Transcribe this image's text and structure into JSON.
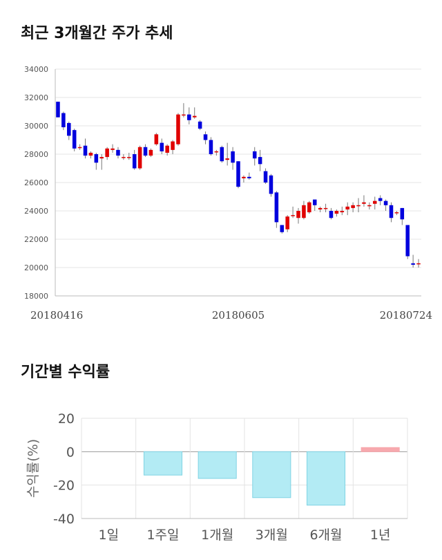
{
  "section1": {
    "title": "최근 3개월간 주가 추세"
  },
  "section2": {
    "title": "기간별 수익률"
  },
  "chart_data": [
    {
      "type": "candlestick",
      "ylim": [
        18000,
        34000
      ],
      "yticks": [
        "34000",
        "32000",
        "30000",
        "28000",
        "26000",
        "24000",
        "22000",
        "20000",
        "18000"
      ],
      "xticks": [
        "20180416",
        "20180605",
        "20180724"
      ],
      "grid": true,
      "candles": [
        [
          31700,
          30600,
          31700,
          30600
        ],
        [
          30900,
          29900,
          31000,
          29700
        ],
        [
          30200,
          29300,
          30300,
          29000
        ],
        [
          29700,
          28400,
          29800,
          28200
        ],
        [
          28500,
          28500,
          28700,
          28300
        ],
        [
          28600,
          27900,
          29100,
          27700
        ],
        [
          27900,
          28100,
          28200,
          27700
        ],
        [
          28000,
          27400,
          28100,
          26900
        ],
        [
          27700,
          27800,
          28000,
          26900
        ],
        [
          27800,
          28400,
          28500,
          27600
        ],
        [
          28300,
          28400,
          28700,
          28100
        ],
        [
          28300,
          27900,
          28500,
          27700
        ],
        [
          27800,
          27800,
          28000,
          27600
        ],
        [
          27800,
          27800,
          28100,
          27600
        ],
        [
          28000,
          27000,
          28300,
          26900
        ],
        [
          27000,
          28500,
          28600,
          26900
        ],
        [
          28500,
          27900,
          28700,
          27800
        ],
        [
          27900,
          28300,
          28400,
          27800
        ],
        [
          28700,
          29400,
          29500,
          28600
        ],
        [
          28800,
          28200,
          29100,
          28000
        ],
        [
          28100,
          28600,
          28700,
          27900
        ],
        [
          28300,
          28900,
          29000,
          28000
        ],
        [
          28700,
          30800,
          30900,
          28600
        ],
        [
          30800,
          30800,
          31600,
          30600
        ],
        [
          30800,
          30400,
          31300,
          30100
        ],
        [
          30600,
          30700,
          31300,
          30500
        ],
        [
          30300,
          29800,
          30400,
          29700
        ],
        [
          29400,
          29000,
          29600,
          28700
        ],
        [
          29000,
          28000,
          29200,
          27900
        ],
        [
          28200,
          28200,
          28300,
          27900
        ],
        [
          28500,
          27500,
          28600,
          27400
        ],
        [
          27600,
          27700,
          28800,
          27200
        ],
        [
          28200,
          27400,
          28500,
          26900
        ],
        [
          27500,
          25700,
          27500,
          25600
        ],
        [
          26300,
          26400,
          26500,
          26000
        ],
        [
          26400,
          26300,
          26700,
          26200
        ],
        [
          28200,
          27700,
          28500,
          27200
        ],
        [
          27800,
          27300,
          28300,
          26800
        ],
        [
          26800,
          26000,
          27000,
          25900
        ],
        [
          26500,
          25200,
          26600,
          25000
        ],
        [
          25300,
          23200,
          25400,
          22800
        ],
        [
          23000,
          22500,
          23000,
          22400
        ],
        [
          22700,
          23600,
          23700,
          22500
        ],
        [
          23700,
          23700,
          24300,
          23500
        ],
        [
          23500,
          24000,
          24200,
          23100
        ],
        [
          23500,
          24400,
          24700,
          23400
        ],
        [
          23900,
          24600,
          24700,
          23800
        ],
        [
          24800,
          24400,
          24800,
          24000
        ],
        [
          24100,
          24200,
          24300,
          23900
        ],
        [
          24200,
          24200,
          24500,
          23900
        ],
        [
          24000,
          23500,
          24200,
          23400
        ],
        [
          23800,
          24000,
          24100,
          23600
        ],
        [
          23900,
          24000,
          24300,
          23700
        ],
        [
          24100,
          24300,
          24600,
          23700
        ],
        [
          24200,
          24400,
          24600,
          23900
        ],
        [
          24400,
          24400,
          24900,
          23900
        ],
        [
          24500,
          24600,
          25100,
          24300
        ],
        [
          24400,
          24400,
          24600,
          24100
        ],
        [
          24500,
          24700,
          25000,
          24100
        ],
        [
          24900,
          24700,
          25100,
          24400
        ],
        [
          24700,
          24400,
          24800,
          24000
        ],
        [
          24400,
          23500,
          24600,
          23200
        ],
        [
          23900,
          23900,
          24000,
          23700
        ],
        [
          24200,
          23400,
          24200,
          23000
        ],
        [
          23000,
          20800,
          23000,
          20600
        ],
        [
          20300,
          20200,
          20900,
          20000
        ],
        [
          20300,
          20300,
          20600,
          20000
        ]
      ]
    },
    {
      "type": "bar",
      "categories": [
        "1일",
        "1주일",
        "1개월",
        "3개월",
        "6개월",
        "1년"
      ],
      "values": [
        0,
        -14,
        -16,
        -27.5,
        -32,
        2.5
      ],
      "ylabel": "수익률(%)",
      "ylim": [
        -40,
        20
      ],
      "yticks": [
        "20",
        "0",
        "-20",
        "-40"
      ],
      "colors": {
        "negative": "#b3ebf4",
        "negative_edge": "#7fd3e3",
        "positive": "#f7a9ae"
      }
    }
  ]
}
